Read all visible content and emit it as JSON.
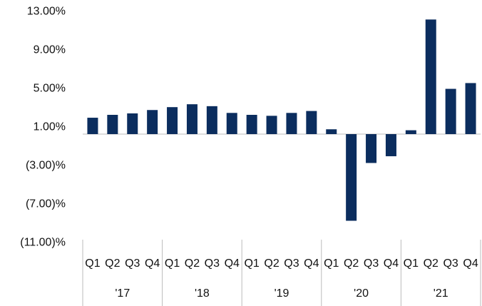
{
  "chart_data": {
    "type": "bar",
    "categories": [
      "Q1",
      "Q2",
      "Q3",
      "Q4",
      "Q1",
      "Q2",
      "Q3",
      "Q4",
      "Q1",
      "Q2",
      "Q3",
      "Q4",
      "Q1",
      "Q2",
      "Q3",
      "Q4",
      "Q1",
      "Q2",
      "Q3",
      "Q4"
    ],
    "groups": [
      "'17",
      "'18",
      "'19",
      "'20",
      "'21"
    ],
    "values": [
      1.7,
      2.0,
      2.15,
      2.5,
      2.8,
      3.1,
      2.9,
      2.2,
      2.0,
      1.9,
      2.2,
      2.4,
      0.5,
      -9.0,
      -3.0,
      -2.3,
      0.4,
      11.9,
      4.7,
      5.3
    ],
    "color": "#0b2d5e",
    "ylim": [
      -11,
      13
    ],
    "yticks": [
      {
        "value": 13,
        "label": "13.00%"
      },
      {
        "value": 9,
        "label": "9.00%"
      },
      {
        "value": 5,
        "label": "5.00%"
      },
      {
        "value": 1,
        "label": "1.00%"
      },
      {
        "value": -3,
        "label": "(3.00)%"
      },
      {
        "value": -7,
        "label": "(7.00)%"
      },
      {
        "value": -11,
        "label": "(11.00)%"
      }
    ],
    "grid": false
  }
}
